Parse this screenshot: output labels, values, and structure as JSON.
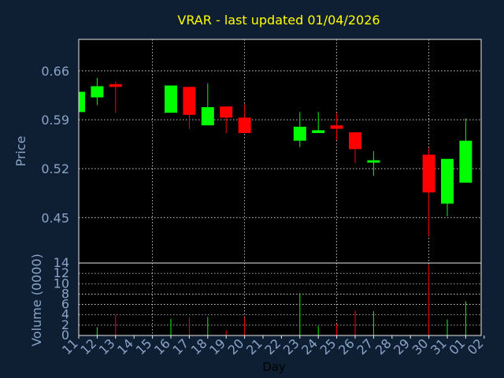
{
  "chart_data": {
    "type": "candlestick",
    "title": "VRAR - last updated 01/04/2026",
    "price_axis": {
      "label": "Price",
      "ylim": [
        0.385,
        0.705
      ],
      "ticks": [
        0.45,
        0.52,
        0.59,
        0.66
      ],
      "tick_labels": [
        "0.45",
        "0.52",
        "0.59",
        "0.66"
      ]
    },
    "volume_axis": {
      "label": "Volume (0000)",
      "ylim": [
        0,
        14
      ],
      "ticks": [
        0,
        2,
        4,
        6,
        8,
        10,
        12,
        14
      ],
      "tick_labels": [
        "0",
        "2",
        "4",
        "6",
        "8",
        "10",
        "12",
        "14"
      ]
    },
    "xlabel": "Day",
    "x_ticks": [
      "11",
      "12",
      "13",
      "14",
      "15",
      "16",
      "17",
      "18",
      "19",
      "20",
      "21",
      "22",
      "23",
      "24",
      "25",
      "26",
      "27",
      "28",
      "29",
      "30",
      "31",
      "01",
      "02"
    ],
    "grid": true,
    "colors": {
      "up": "#00ff00",
      "down": "#ff0000",
      "background": "#0f1f33",
      "plot_background": "#000000",
      "title": "#ffff00",
      "axis_text": "#8aa4c8",
      "grid": "#e8e8e8"
    },
    "candles": [
      {
        "day": "11",
        "open": 0.601,
        "close": 0.63,
        "high": 0.63,
        "low": 0.601,
        "volume": 0.0
      },
      {
        "day": "12",
        "open": 0.622,
        "close": 0.638,
        "high": 0.65,
        "low": 0.611,
        "volume": 1.6
      },
      {
        "day": "13",
        "open": 0.641,
        "close": 0.637,
        "high": 0.645,
        "low": 0.6,
        "volume": 4.0
      },
      {
        "day": "16",
        "open": 0.6,
        "close": 0.639,
        "high": 0.639,
        "low": 0.6,
        "volume": 3.2
      },
      {
        "day": "17",
        "open": 0.637,
        "close": 0.597,
        "high": 0.637,
        "low": 0.577,
        "volume": 3.5
      },
      {
        "day": "18",
        "open": 0.582,
        "close": 0.608,
        "high": 0.642,
        "low": 0.582,
        "volume": 3.6
      },
      {
        "day": "19",
        "open": 0.609,
        "close": 0.593,
        "high": 0.609,
        "low": 0.571,
        "volume": 1.0
      },
      {
        "day": "20",
        "open": 0.593,
        "close": 0.571,
        "high": 0.612,
        "low": 0.571,
        "volume": 3.4
      },
      {
        "day": "23",
        "open": 0.56,
        "close": 0.58,
        "high": 0.601,
        "low": 0.551,
        "volume": 8.2
      },
      {
        "day": "24",
        "open": 0.571,
        "close": 0.575,
        "high": 0.601,
        "low": 0.571,
        "volume": 1.8
      },
      {
        "day": "25",
        "open": 0.582,
        "close": 0.577,
        "high": 0.6,
        "low": 0.561,
        "volume": 2.2
      },
      {
        "day": "26",
        "open": 0.572,
        "close": 0.548,
        "high": 0.572,
        "low": 0.528,
        "volume": 4.8
      },
      {
        "day": "27",
        "open": 0.53,
        "close": 0.532,
        "high": 0.545,
        "low": 0.51,
        "volume": 4.7
      },
      {
        "day": "30",
        "open": 0.54,
        "close": 0.486,
        "high": 0.55,
        "low": 0.423,
        "volume": 13.6
      },
      {
        "day": "31",
        "open": 0.47,
        "close": 0.534,
        "high": 0.534,
        "low": 0.452,
        "volume": 3.1
      },
      {
        "day": "01",
        "open": 0.5,
        "close": 0.56,
        "high": 0.592,
        "low": 0.5,
        "volume": 6.6
      }
    ]
  }
}
